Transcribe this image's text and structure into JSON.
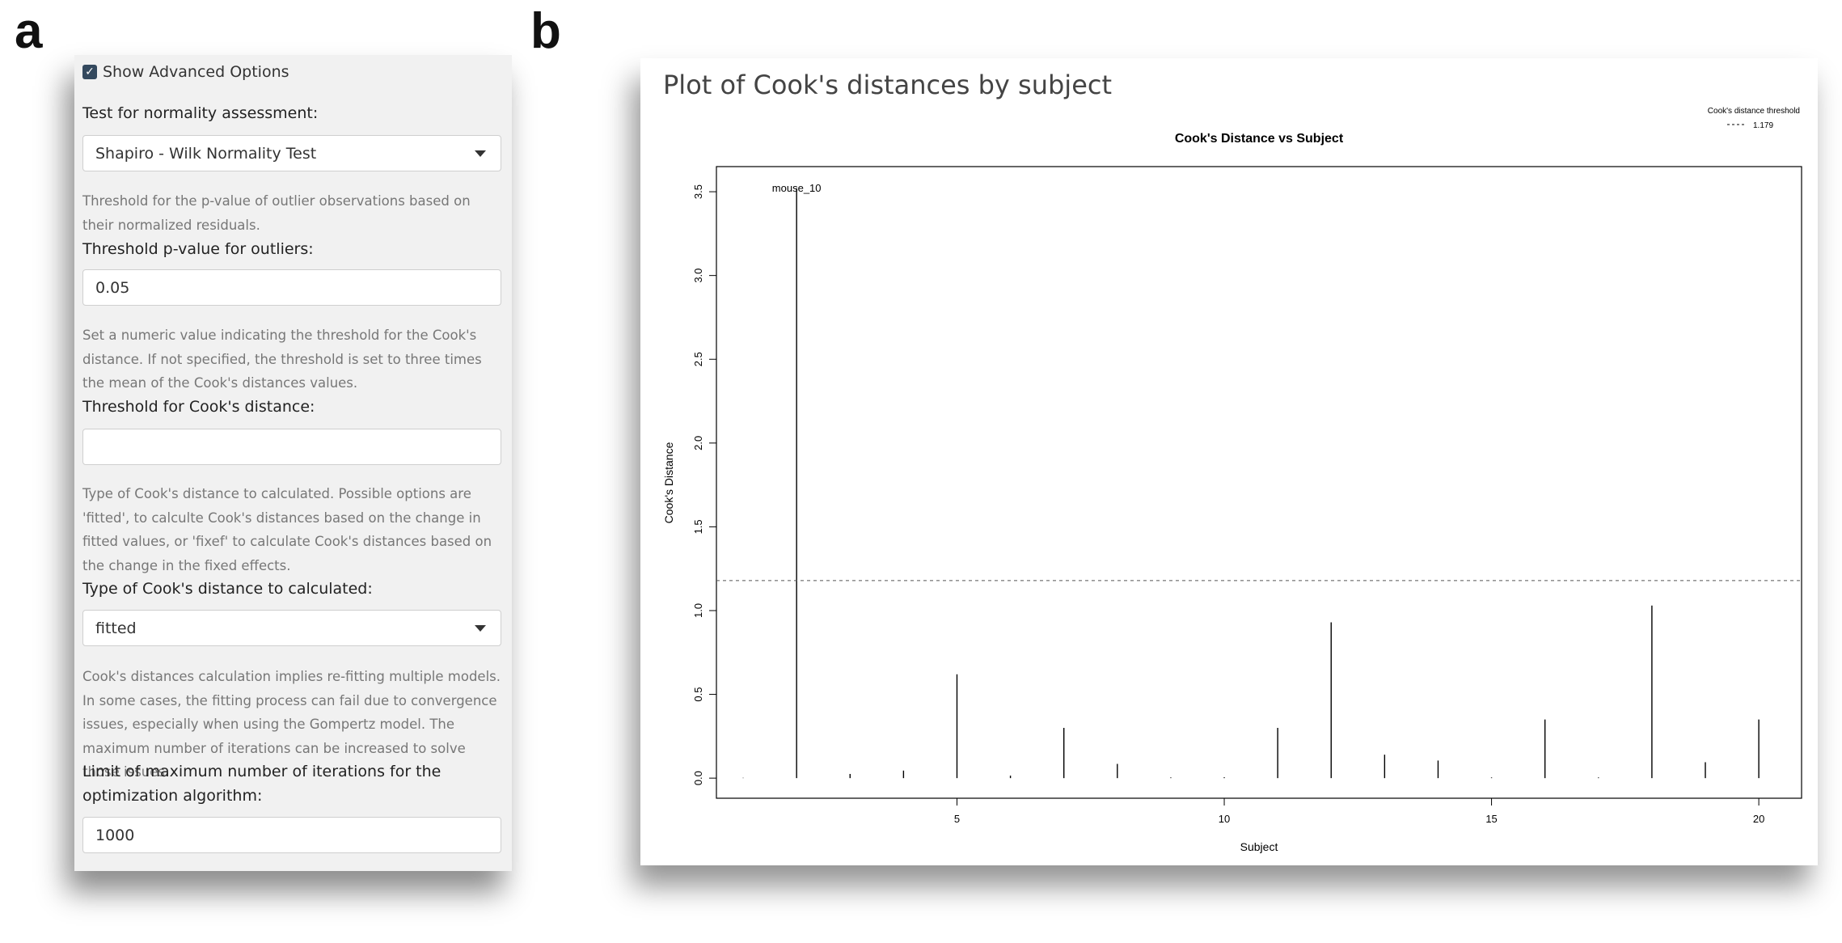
{
  "panel_letters": {
    "a": "a",
    "b": "b"
  },
  "options": {
    "show_advanced_label": "Show Advanced Options",
    "show_advanced_checked": true,
    "normality_label": "Test for normality assessment:",
    "normality_value": "Shapiro - Wilk Normality Test",
    "pvalue_help": "Threshold for the p-value of outlier observations based on their normalized residuals.",
    "pvalue_label": "Threshold p-value for outliers:",
    "pvalue_value": "0.05",
    "cook_threshold_help": "Set a numeric value indicating the threshold for the Cook's distance. If not specified, the threshold is set to three times the mean of the Cook's distances values.",
    "cook_threshold_label": "Threshold for Cook's distance:",
    "cook_threshold_value": "",
    "cook_type_help": "Type of Cook's distance to calculated. Possible options are 'fitted', to calculte Cook's distances based on the change in fitted values, or 'fixef' to calculate Cook's distances based on the change in the fixed effects.",
    "cook_type_label": "Type of Cook's distance to calculated:",
    "cook_type_value": "fitted",
    "iterations_help": "Cook's distances calculation implies re-fitting multiple models. In some cases, the fitting process can fail due to convergence issues, especially when using the Gompertz model. The maximum number of iterations can be increased to solve those issues.",
    "iterations_label": "Limit of maximum number of iterations for the optimization algorithm:",
    "iterations_value": "1000"
  },
  "plot_panel": {
    "heading": "Plot of Cook's distances by subject"
  },
  "chart_data": {
    "type": "bar",
    "title": "Cook's Distance vs Subject",
    "xlabel": "Subject",
    "ylabel": "Cook's Distance",
    "x": [
      1,
      2,
      3,
      4,
      5,
      6,
      7,
      8,
      9,
      10,
      11,
      12,
      13,
      14,
      15,
      16,
      17,
      18,
      19,
      20
    ],
    "values": [
      0.002,
      3.52,
      0.025,
      0.045,
      0.62,
      0.015,
      0.3,
      0.085,
      0.004,
      0.005,
      0.3,
      0.93,
      0.14,
      0.105,
      0.004,
      0.35,
      0.004,
      1.03,
      0.095,
      0.35
    ],
    "xlim": [
      0.5,
      20.8
    ],
    "ylim": [
      -0.12,
      3.65
    ],
    "xticks": [
      5,
      10,
      15,
      20
    ],
    "yticks": [
      0.0,
      0.5,
      1.0,
      1.5,
      2.0,
      2.5,
      3.0,
      3.5
    ],
    "ytick_labels": [
      "0.0",
      "0.5",
      "1.0",
      "1.5",
      "2.0",
      "2.5",
      "3.0",
      "3.5"
    ],
    "threshold": 1.179,
    "annotations": [
      {
        "x": 2,
        "y": 3.52,
        "text": "mouse_10"
      }
    ],
    "legend": {
      "title": "Cook's distance threshold",
      "entry": "1.179",
      "position": "top-right"
    },
    "grid": false
  }
}
